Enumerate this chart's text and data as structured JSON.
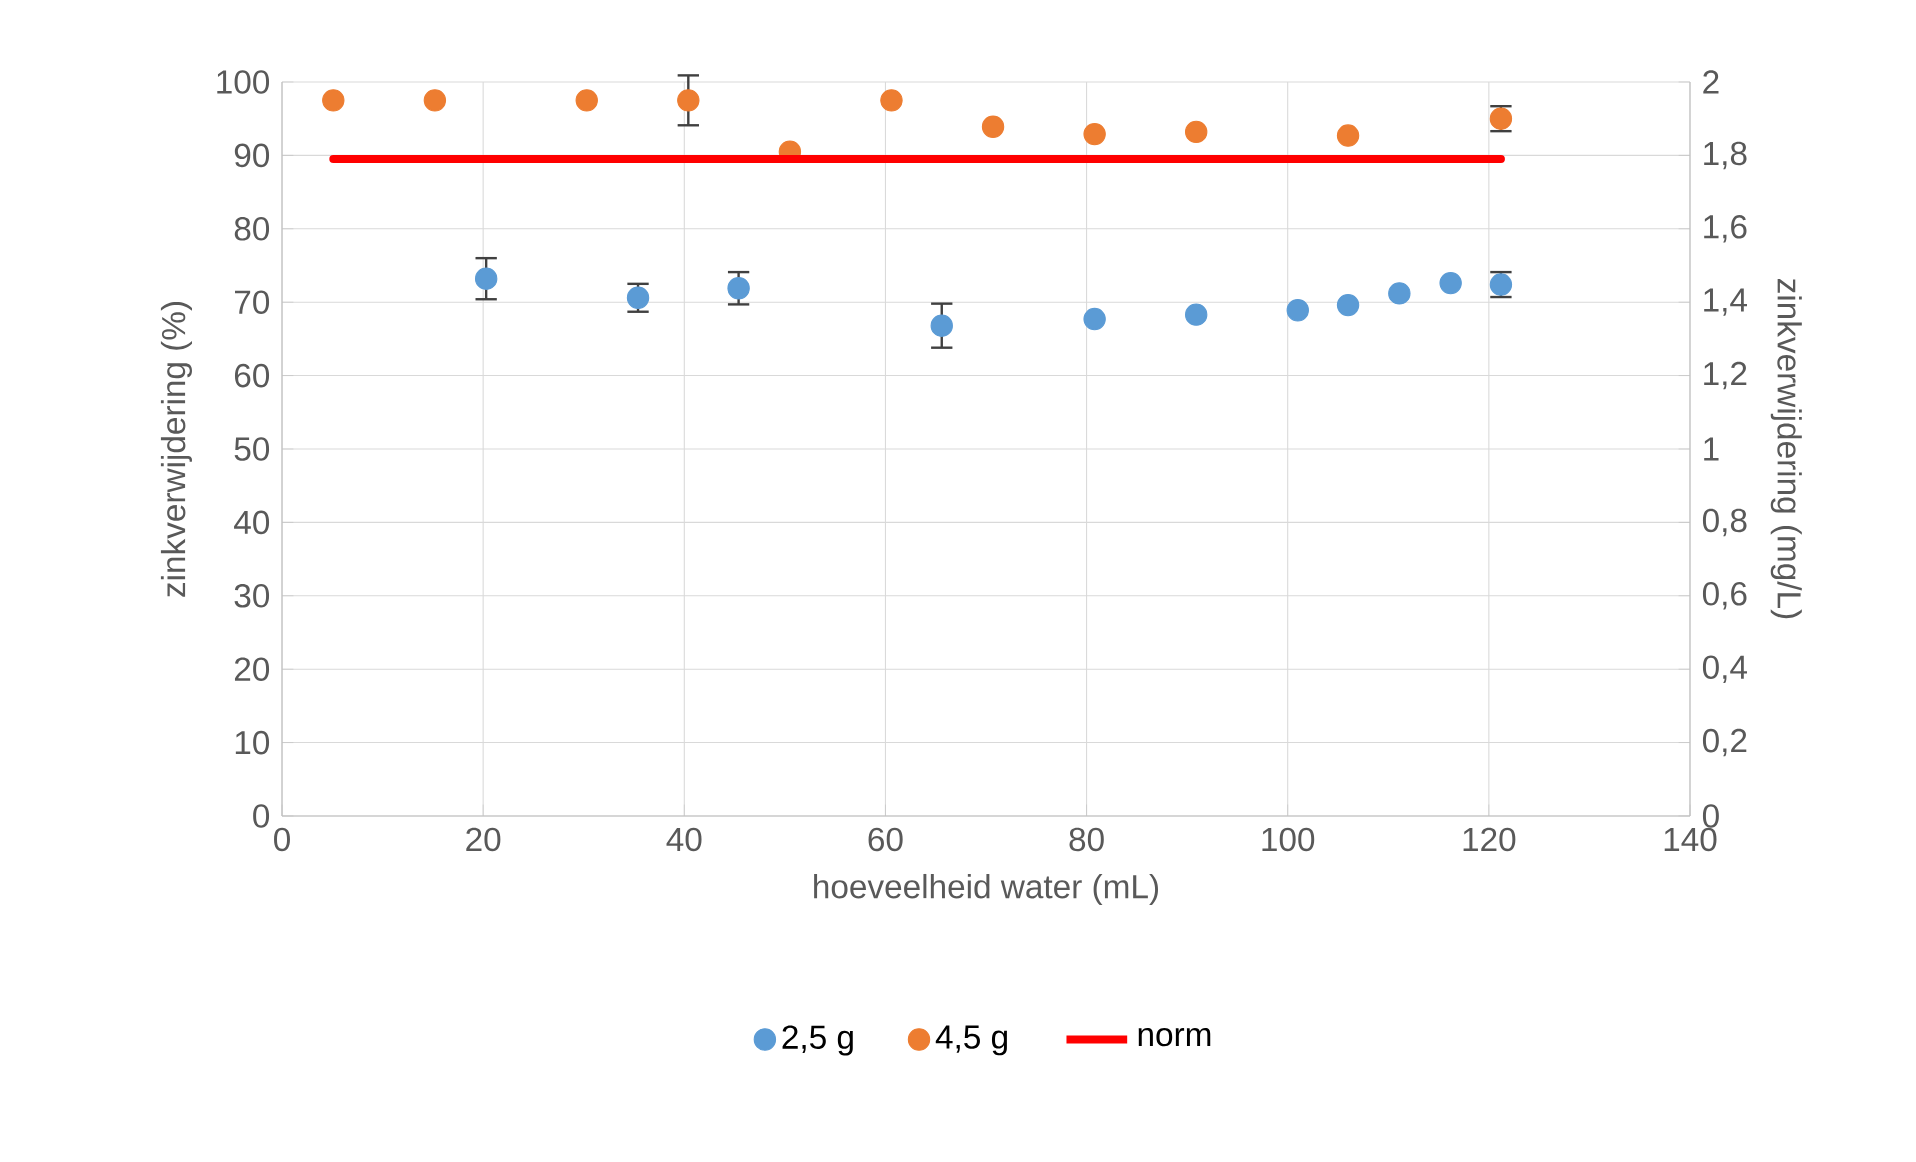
{
  "chart_data": {
    "type": "scatter",
    "xlabel": "hoeveelheid water (mL)",
    "ylabel": "zinkverwijdering (%)",
    "y2label": "zinkverwijdering (mg/L)",
    "xlim": [
      0,
      140
    ],
    "xticks": [
      0,
      20,
      40,
      60,
      80,
      100,
      120,
      140
    ],
    "ylim": [
      0,
      100
    ],
    "yticks": [
      0,
      10,
      20,
      30,
      40,
      50,
      60,
      70,
      80,
      90,
      100
    ],
    "y2lim": [
      0,
      2
    ],
    "y2ticks": [
      0,
      {
        "value": 0.2,
        "label": "0,2"
      },
      {
        "value": 0.4,
        "label": "0,4"
      },
      {
        "value": 0.6,
        "label": "0,6"
      },
      {
        "value": 0.8,
        "label": "0,8"
      },
      1,
      {
        "value": 1.2,
        "label": "1,2"
      },
      {
        "value": 1.4,
        "label": "1,4"
      },
      {
        "value": 1.6,
        "label": "1,6"
      },
      {
        "value": 1.8,
        "label": "1,8"
      },
      2
    ],
    "grid": true,
    "legend": "bottom",
    "series": [
      {
        "name": "2,5 g",
        "color": "#5b9bd5",
        "marker": "circle",
        "x": [
          20.3,
          35.4,
          45.4,
          65.6,
          80.8,
          90.9,
          101,
          106,
          111.1,
          116.2,
          121.2
        ],
        "values": [
          73.2,
          70.6,
          71.9,
          66.8,
          67.7,
          68.3,
          68.9,
          69.6,
          71.2,
          72.6,
          72.4
        ],
        "errors": [
          2.8,
          1.9,
          2.2,
          3.0,
          null,
          null,
          null,
          null,
          null,
          null,
          1.7
        ]
      },
      {
        "name": "4,5 g",
        "color": "#ed7d31",
        "marker": "circle",
        "x": [
          5.1,
          15.2,
          30.3,
          40.4,
          50.5,
          60.6,
          70.7,
          80.8,
          90.9,
          106,
          121.2
        ],
        "values": [
          97.5,
          97.5,
          97.5,
          97.5,
          90.5,
          97.5,
          93.9,
          92.9,
          93.2,
          92.7,
          95
        ],
        "errors": [
          null,
          null,
          null,
          3.4,
          null,
          null,
          null,
          null,
          null,
          null,
          1.7
        ]
      },
      {
        "name": "norm",
        "color": "#ff0000",
        "type": "line",
        "axis": "y2",
        "marker": "none",
        "x": [
          5.1,
          121.2
        ],
        "values": [
          1.79,
          1.79
        ]
      }
    ]
  }
}
